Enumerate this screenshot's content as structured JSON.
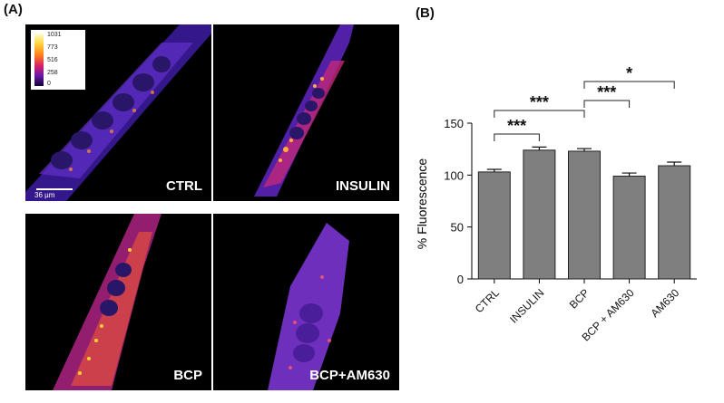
{
  "panel_a_label": "(A)",
  "panel_b_label": "(B)",
  "micrographs": [
    {
      "label": "CTRL"
    },
    {
      "label": "INSULIN"
    },
    {
      "label": "BCP"
    },
    {
      "label": "BCP+AM630"
    }
  ],
  "colorbar": {
    "ticks": [
      "1031",
      "773",
      "516",
      "258",
      "0"
    ]
  },
  "scalebar_label": "36 µm",
  "chart_data": {
    "type": "bar",
    "categories": [
      "CTRL",
      "INSULIN",
      "BCP",
      "BCP + AM630",
      "AM630"
    ],
    "values": [
      103,
      124,
      123,
      99,
      109
    ],
    "errors": [
      2.5,
      3,
      2.5,
      3,
      3.5
    ],
    "ylabel": "% Fluorescence",
    "ylim": [
      0,
      150
    ],
    "yticks": [
      "0",
      "50",
      "100",
      "150"
    ],
    "bar_color": "#7f7f7f",
    "significance": [
      {
        "from": "CTRL",
        "to": "INSULIN",
        "label": "***"
      },
      {
        "from": "CTRL",
        "to": "BCP",
        "label": "***"
      },
      {
        "from": "BCP",
        "to": "BCP + AM630",
        "label": "***"
      },
      {
        "from": "BCP",
        "to": "AM630",
        "label": "*"
      }
    ]
  }
}
